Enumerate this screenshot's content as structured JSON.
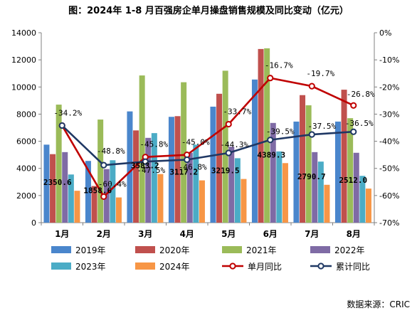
{
  "title": "图：2024年 1-8 月百强房企单月操盘销售规模及同比变动（亿元）",
  "source": "数据来源：CRIC",
  "chart_data": {
    "type": "bar",
    "categories": [
      "1月",
      "2月",
      "3月",
      "4月",
      "5月",
      "6月",
      "7月",
      "8月"
    ],
    "ylim": [
      0,
      14000
    ],
    "y2lim": [
      -70,
      0
    ],
    "left_ticks": [
      "0",
      "2000",
      "4000",
      "6000",
      "8000",
      "10000",
      "12000",
      "14000"
    ],
    "right_ticks": [
      "0%",
      "-10%",
      "-20%",
      "-30%",
      "-40%",
      "-50%",
      "-60%",
      "-70%"
    ],
    "grid": false,
    "legend_position": "bottom",
    "series": [
      {
        "name": "2019年",
        "color": "#4a86cc",
        "values": [
          5750,
          4550,
          8200,
          7800,
          8550,
          10550,
          7450,
          7450
        ]
      },
      {
        "name": "2020年",
        "color": "#c0504d",
        "values": [
          5050,
          2700,
          6800,
          7850,
          9500,
          12800,
          9400,
          9800
        ]
      },
      {
        "name": "2021年",
        "color": "#9bbb59",
        "values": [
          8700,
          7600,
          10850,
          10350,
          11200,
          12850,
          8650,
          7700
        ]
      },
      {
        "name": "2022年",
        "color": "#7f6ba5",
        "values": [
          5200,
          3950,
          6250,
          5150,
          5600,
          7350,
          5200,
          5150
        ]
      },
      {
        "name": "2023年",
        "color": "#4bacc6",
        "values": [
          3550,
          4600,
          6600,
          5750,
          4750,
          5250,
          4500,
          3450
        ]
      },
      {
        "name": "2024年",
        "color": "#f79646",
        "values": [
          2350.6,
          1858.6,
          3583.2,
          3117.2,
          3219.5,
          4389.3,
          2790.7,
          2512.0
        ]
      }
    ],
    "bar_labels": [
      "2350.6",
      "1858.6",
      "3583.2",
      "3117.2",
      "3219.5",
      "4389.3",
      "2790.7",
      "2512.0"
    ],
    "lines": [
      {
        "name": "单月同比",
        "color": "#c00000",
        "values": [
          -34.2,
          -60.4,
          -45.8,
          -45.0,
          -33.7,
          -16.7,
          -19.7,
          -26.8
        ],
        "labels": [
          "-34.2%",
          "-60.4%",
          "-45.8%",
          "-45.0%",
          "-33.7%",
          "-16.7%",
          "-19.7%",
          "-26.8%"
        ]
      },
      {
        "name": "累计同比",
        "color": "#1f3864",
        "values": [
          -34.2,
          -48.8,
          -47.5,
          -46.8,
          -44.3,
          -39.5,
          -37.5,
          -36.5
        ],
        "labels": [
          "-34.2%",
          "-48.8%",
          "-47.5%",
          "-46.8%",
          "-44.3%",
          "-39.5%",
          "-37.5%",
          "-36.5%"
        ]
      }
    ]
  }
}
